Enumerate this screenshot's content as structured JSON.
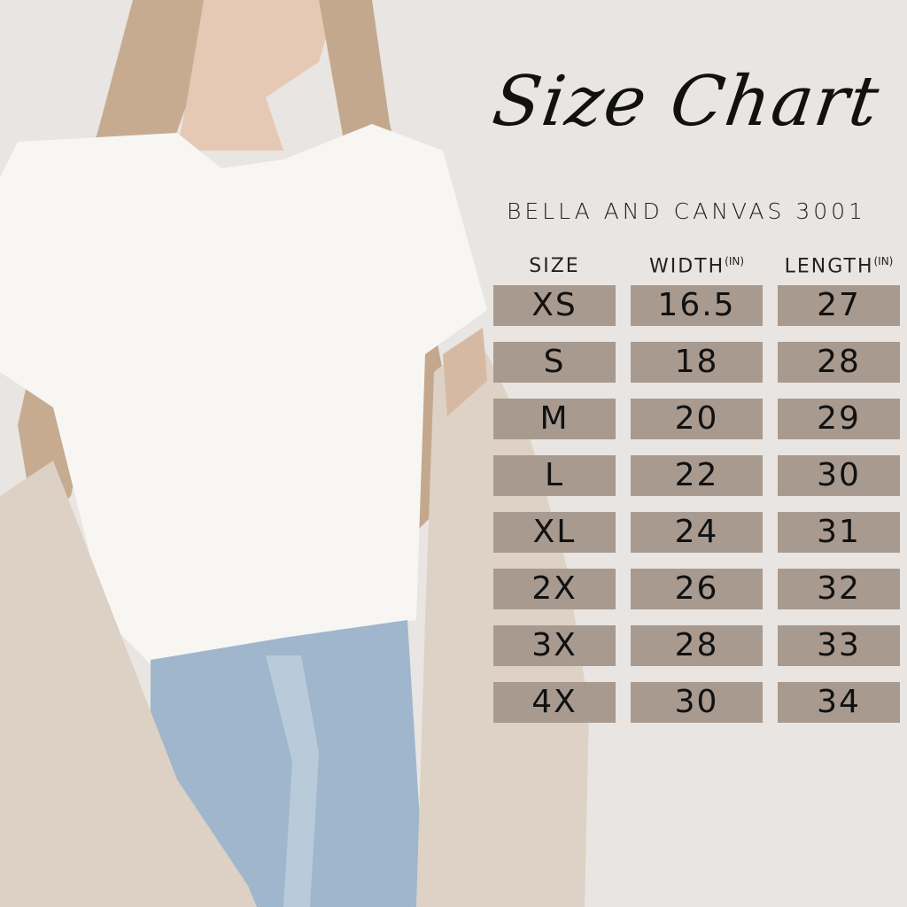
{
  "title": "Size Chart",
  "subtitle": "BELLA AND CANVAS 3001",
  "colors": {
    "background": "#e8e5e2",
    "cell": "#a89a8f",
    "text": "#111111"
  },
  "table": {
    "headers": [
      {
        "label": "SIZE",
        "unit": ""
      },
      {
        "label": "WIDTH",
        "unit": "(IN)"
      },
      {
        "label": "LENGTH",
        "unit": "(IN)"
      }
    ],
    "rows": [
      [
        "XS",
        "16.5",
        "27"
      ],
      [
        "S",
        "18",
        "28"
      ],
      [
        "M",
        "20",
        "29"
      ],
      [
        "L",
        "22",
        "30"
      ],
      [
        "XL",
        "24",
        "31"
      ],
      [
        "2X",
        "26",
        "32"
      ],
      [
        "3X",
        "28",
        "33"
      ],
      [
        "4X",
        "30",
        "34"
      ]
    ]
  }
}
